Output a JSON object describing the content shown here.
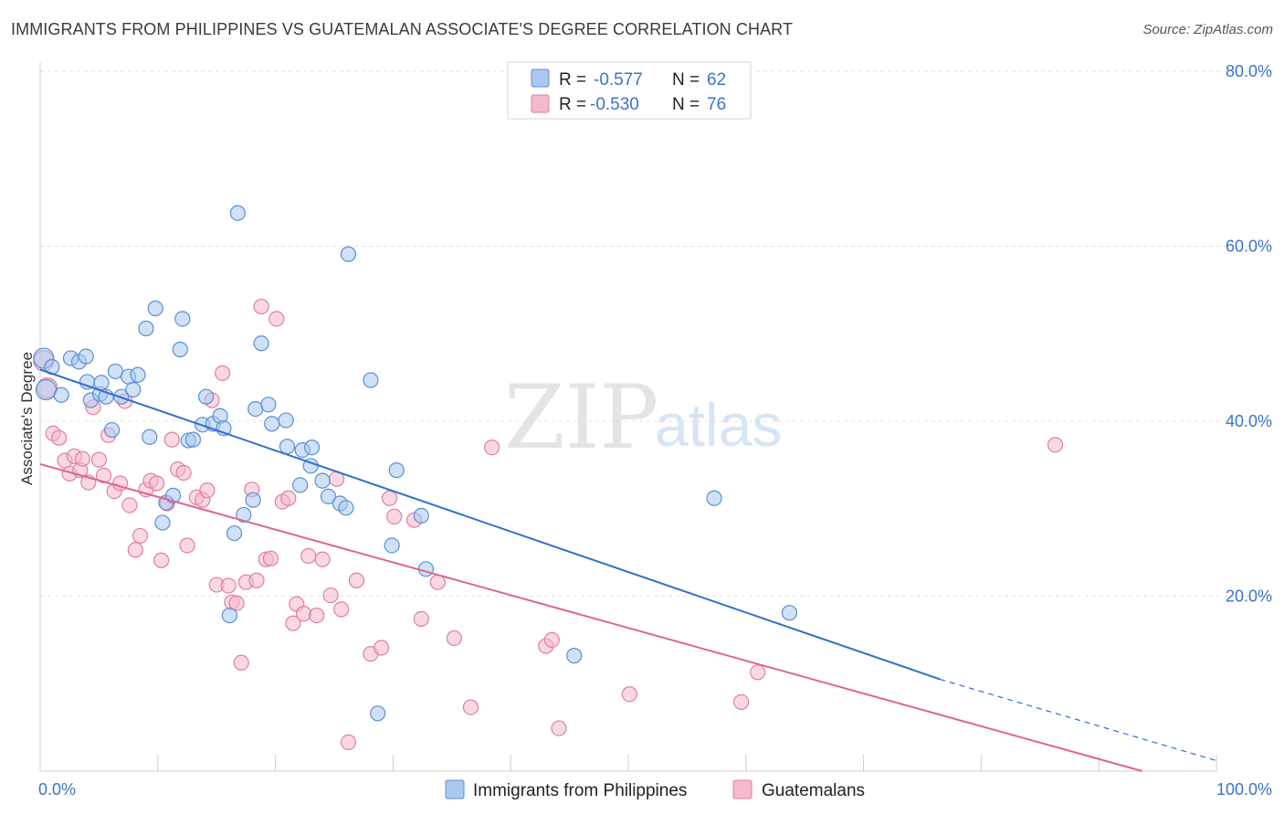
{
  "title": "IMMIGRANTS FROM PHILIPPINES VS GUATEMALAN ASSOCIATE'S DEGREE CORRELATION CHART",
  "source": "Source: ZipAtlas.com",
  "watermark": {
    "zip": "ZIP",
    "atlas": "atlas"
  },
  "legend": {
    "rows": [
      {
        "r_label": "R =",
        "r_value": "-0.577",
        "n_label": "N =",
        "n_value": "62"
      },
      {
        "r_label": "R =",
        "r_value": "-0.530",
        "n_label": "N =",
        "n_value": "76"
      }
    ]
  },
  "bottom_legend": {
    "series1": "Immigrants from Philippines",
    "series2": "Guatemalans"
  },
  "colors": {
    "blue_fill": "#aac8ee",
    "blue_stroke": "#5a8fd6",
    "blue_line": "#2f6fcf",
    "pink_fill": "#f5b8cc",
    "pink_stroke": "#e07fa0",
    "pink_line": "#e0648f",
    "tick_text": "#3b73c8",
    "grid": "#e0e0e0"
  },
  "chart_data": {
    "type": "scatter",
    "title": "IMMIGRANTS FROM PHILIPPINES VS GUATEMALAN ASSOCIATE'S DEGREE CORRELATION CHART",
    "xlabel": "",
    "ylabel": "Associate's Degree",
    "xlim": [
      0,
      100
    ],
    "ylim": [
      0,
      80
    ],
    "x_tick_labels": [
      "0.0%",
      "100.0%"
    ],
    "y_ticks": [
      20,
      40,
      60,
      80
    ],
    "y_tick_labels": [
      "20.0%",
      "40.0%",
      "60.0%",
      "80.0%"
    ],
    "grid": true,
    "legend_position": "top-center",
    "series": [
      {
        "name": "Immigrants from Philippines",
        "R": -0.577,
        "N": 62,
        "trend": {
          "x0": 0,
          "y0": 45.9,
          "x1": 76.5,
          "y1": 10.5,
          "dashed_to_x": 100,
          "dashed_to_y": 1.2
        },
        "points": [
          [
            0.3,
            47.2
          ],
          [
            0.5,
            43.6
          ],
          [
            1.0,
            46.2
          ],
          [
            1.8,
            43.0
          ],
          [
            2.6,
            47.2
          ],
          [
            3.3,
            46.8
          ],
          [
            3.9,
            47.4
          ],
          [
            4.0,
            44.5
          ],
          [
            4.3,
            42.4
          ],
          [
            5.1,
            43.1
          ],
          [
            5.2,
            44.4
          ],
          [
            5.6,
            42.8
          ],
          [
            6.1,
            39.0
          ],
          [
            6.4,
            45.7
          ],
          [
            6.9,
            42.8
          ],
          [
            7.5,
            45.1
          ],
          [
            7.9,
            43.6
          ],
          [
            8.3,
            45.3
          ],
          [
            9.0,
            50.6
          ],
          [
            9.3,
            38.2
          ],
          [
            9.8,
            52.9
          ],
          [
            10.4,
            28.4
          ],
          [
            10.7,
            30.7
          ],
          [
            11.3,
            31.5
          ],
          [
            11.9,
            48.2
          ],
          [
            12.1,
            51.7
          ],
          [
            12.6,
            37.8
          ],
          [
            13.0,
            37.9
          ],
          [
            13.8,
            39.6
          ],
          [
            14.1,
            42.8
          ],
          [
            14.7,
            39.7
          ],
          [
            15.3,
            40.6
          ],
          [
            15.6,
            39.2
          ],
          [
            16.1,
            17.8
          ],
          [
            16.5,
            27.2
          ],
          [
            16.8,
            63.8
          ],
          [
            17.3,
            29.3
          ],
          [
            18.1,
            31.0
          ],
          [
            18.3,
            41.4
          ],
          [
            18.8,
            48.9
          ],
          [
            19.4,
            41.9
          ],
          [
            19.7,
            39.7
          ],
          [
            20.9,
            40.1
          ],
          [
            21.0,
            37.1
          ],
          [
            22.1,
            32.7
          ],
          [
            22.3,
            36.7
          ],
          [
            23.0,
            34.9
          ],
          [
            23.1,
            37.0
          ],
          [
            24.0,
            33.2
          ],
          [
            24.5,
            31.4
          ],
          [
            25.5,
            30.6
          ],
          [
            26.0,
            30.1
          ],
          [
            26.2,
            59.1
          ],
          [
            28.1,
            44.7
          ],
          [
            29.9,
            25.8
          ],
          [
            30.3,
            34.4
          ],
          [
            32.4,
            29.2
          ],
          [
            32.8,
            23.1
          ],
          [
            45.4,
            13.2
          ],
          [
            57.3,
            31.2
          ],
          [
            63.7,
            18.1
          ],
          [
            28.7,
            6.6
          ]
        ]
      },
      {
        "name": "Guatemalans",
        "R": -0.53,
        "N": 76,
        "trend": {
          "x0": 0,
          "y0": 35.1,
          "x1": 93.7,
          "y1": 0.0
        },
        "points": [
          [
            0.3,
            46.9
          ],
          [
            0.6,
            43.8
          ],
          [
            1.1,
            38.6
          ],
          [
            1.6,
            38.1
          ],
          [
            2.1,
            35.5
          ],
          [
            2.5,
            34.0
          ],
          [
            2.9,
            36.0
          ],
          [
            3.4,
            34.4
          ],
          [
            3.6,
            35.7
          ],
          [
            4.1,
            33.0
          ],
          [
            4.5,
            41.6
          ],
          [
            5.0,
            35.6
          ],
          [
            5.4,
            33.8
          ],
          [
            5.8,
            38.4
          ],
          [
            6.3,
            32.0
          ],
          [
            6.8,
            32.9
          ],
          [
            7.2,
            42.3
          ],
          [
            7.6,
            30.4
          ],
          [
            8.1,
            25.3
          ],
          [
            8.5,
            26.9
          ],
          [
            9.0,
            32.2
          ],
          [
            9.4,
            33.2
          ],
          [
            9.9,
            32.9
          ],
          [
            10.3,
            24.1
          ],
          [
            10.8,
            30.6
          ],
          [
            11.2,
            37.9
          ],
          [
            11.7,
            34.5
          ],
          [
            12.2,
            34.1
          ],
          [
            12.5,
            25.8
          ],
          [
            13.3,
            31.3
          ],
          [
            13.8,
            31.0
          ],
          [
            14.2,
            32.1
          ],
          [
            14.6,
            42.4
          ],
          [
            15.0,
            21.3
          ],
          [
            15.5,
            45.5
          ],
          [
            16.0,
            21.2
          ],
          [
            16.3,
            19.3
          ],
          [
            16.7,
            19.2
          ],
          [
            17.1,
            12.4
          ],
          [
            17.5,
            21.6
          ],
          [
            18.0,
            32.2
          ],
          [
            18.4,
            21.8
          ],
          [
            18.8,
            53.1
          ],
          [
            19.2,
            24.2
          ],
          [
            19.6,
            24.3
          ],
          [
            20.1,
            51.7
          ],
          [
            20.6,
            30.8
          ],
          [
            21.1,
            31.2
          ],
          [
            21.5,
            16.9
          ],
          [
            21.8,
            19.1
          ],
          [
            22.4,
            18.0
          ],
          [
            22.8,
            24.6
          ],
          [
            23.5,
            17.8
          ],
          [
            24.0,
            24.2
          ],
          [
            24.7,
            20.1
          ],
          [
            25.2,
            33.4
          ],
          [
            25.6,
            18.5
          ],
          [
            26.2,
            3.3
          ],
          [
            26.9,
            21.8
          ],
          [
            28.1,
            13.4
          ],
          [
            29.0,
            14.1
          ],
          [
            29.7,
            31.2
          ],
          [
            30.1,
            29.1
          ],
          [
            31.8,
            28.7
          ],
          [
            32.4,
            17.4
          ],
          [
            33.8,
            21.6
          ],
          [
            35.2,
            15.2
          ],
          [
            36.6,
            7.3
          ],
          [
            38.4,
            37.0
          ],
          [
            43.0,
            14.3
          ],
          [
            43.5,
            15.0
          ],
          [
            44.1,
            4.9
          ],
          [
            50.1,
            8.8
          ],
          [
            59.6,
            7.9
          ],
          [
            61.0,
            11.3
          ],
          [
            86.3,
            37.3
          ]
        ]
      }
    ]
  }
}
